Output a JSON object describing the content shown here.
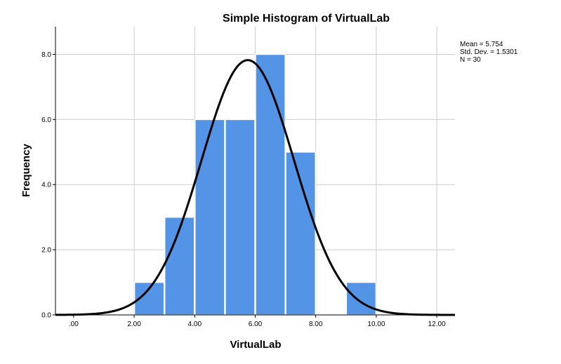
{
  "chart_data": {
    "type": "bar",
    "title": "Simple Histogram of VirtualLab",
    "xlabel": "VirtualLab",
    "ylabel": "Frequency",
    "bin_edges": [
      2,
      3,
      4,
      5,
      6,
      7,
      8,
      9,
      10
    ],
    "values": [
      1,
      3,
      6,
      6,
      8,
      5,
      0,
      1
    ],
    "bar_color": "#5494e6",
    "curve_color": "#000000",
    "normal_curve": {
      "mean": 5.754,
      "sd": 1.5301,
      "n": 30,
      "bin_width": 1
    },
    "xlim": [
      -0.6,
      12.6
    ],
    "ylim": [
      0,
      8.85
    ],
    "x_ticks": [
      0,
      2,
      4,
      6,
      8,
      10,
      12
    ],
    "x_tick_labels": [
      ".00",
      "2.00",
      "4.00",
      "6.00",
      "8.00",
      "10.00",
      "12.00"
    ],
    "y_ticks": [
      0,
      2,
      4,
      6,
      8
    ],
    "y_tick_labels": [
      "0.0",
      "2.0",
      "4.0",
      "6.0",
      "8.0"
    ],
    "grid": true,
    "stats_text": {
      "mean": "Mean = 5.754",
      "sd": "Std. Dev. = 1.5301",
      "n": "N = 30"
    }
  }
}
